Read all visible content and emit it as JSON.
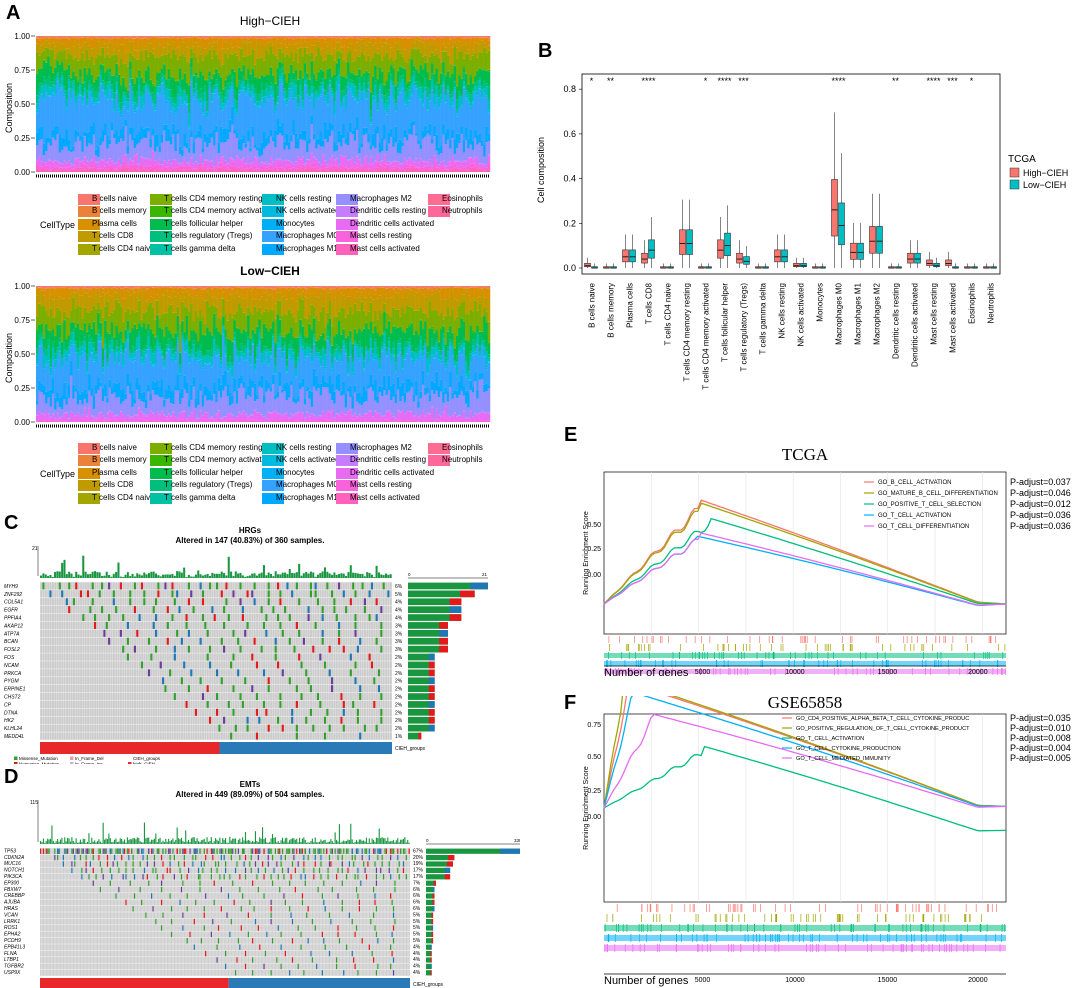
{
  "panels": {
    "A": "A",
    "B": "B",
    "C": "C",
    "D": "D",
    "E": "E",
    "F": "F"
  },
  "colors": {
    "B cells naive": "#f8766d",
    "B cells memory": "#ec8239",
    "Plasma cells": "#d89000",
    "T cells CD8": "#c09b00",
    "T cells CD4 naive": "#a3a500",
    "T cells CD4 memory resting": "#7cae00",
    "T cells CD4 memory activated": "#39b600",
    "T cells follicular helper": "#00bb4e",
    "T cells regulatory (Tregs)": "#00bf7d",
    "T cells gamma delta": "#00c1a3",
    "NK cells resting": "#00bfc4",
    "NK cells activated": "#00bae0",
    "Monocytes": "#00b0f6",
    "Macrophages M0": "#35a2ff",
    "Macrophages M1": "#00a9ff",
    "Macrophages M2": "#9590ff",
    "Dendritic cells resting": "#c77cff",
    "Dendritic cells activated": "#e76bf3",
    "Mast cells resting": "#fa62db",
    "Mast cells activated": "#ff62bc",
    "Eosinophils": "#ff6c91",
    "Neutrophils": "#ff6699"
  },
  "panelA": {
    "high_title": "High−CIEH",
    "low_title": "Low−CIEH",
    "ylabel": "Composition",
    "yticks": [
      "1.00",
      "0.75",
      "0.50",
      "0.25",
      "0.00"
    ],
    "legend_title": "CellType",
    "legend_cols": [
      [
        "B cells naive",
        "B cells memory",
        "Plasma cells",
        "T cells CD8",
        "T cells CD4 naive"
      ],
      [
        "T cells CD4 memory resting",
        "T cells CD4 memory activated",
        "T cells follicular helper",
        "T cells regulatory (Tregs)",
        "T cells gamma delta"
      ],
      [
        "NK cells resting",
        "NK cells activated",
        "Monocytes",
        "Macrophages M0",
        "Macrophages M1"
      ],
      [
        "Macrophages M2",
        "Dendritic cells resting",
        "Dendritic cells activated",
        "Mast cells resting",
        "Mast cells activated"
      ],
      [
        "Eosinophils",
        "Neutrophils"
      ]
    ]
  },
  "chart_data": [
    {
      "type": "box",
      "title": "",
      "ylabel": "Cell composition",
      "ylim": [
        0,
        0.85
      ],
      "yticks": [
        "0.0",
        "0.2",
        "0.4",
        "0.6",
        "0.8"
      ],
      "legend_title": "TCGA",
      "series": [
        {
          "name": "High−CIEH",
          "color": "#f8766d"
        },
        {
          "name": "Low−CIEH",
          "color": "#00bfc4"
        }
      ],
      "categories": [
        "B cells naive",
        "B cells memory",
        "Plasma cells",
        "T cells CD8",
        "T cells CD4 naive",
        "T cells CD4 memory resting",
        "T cells CD4 memory activated",
        "T cells follicular helper",
        "T cells regulatory (Tregs)",
        "T cells gamma delta",
        "NK cells resting",
        "NK cells activated",
        "Monocytes",
        "Macrophages M0",
        "Macrophages M1",
        "Macrophages M2",
        "Dendritic cells resting",
        "Dendritic cells activated",
        "Mast cells resting",
        "Mast cells activated",
        "Eosinophils",
        "Neutrophils"
      ],
      "significance": [
        "*",
        "**",
        "",
        "****",
        "",
        "",
        "*",
        "****",
        "***",
        "",
        "",
        "",
        "",
        "****",
        "",
        "",
        "**",
        "",
        "****",
        "***",
        "*",
        ""
      ],
      "high_median": [
        0.01,
        0.0,
        0.05,
        0.04,
        0.0,
        0.11,
        0.0,
        0.08,
        0.04,
        0.0,
        0.05,
        0.01,
        0.0,
        0.26,
        0.07,
        0.12,
        0.0,
        0.04,
        0.02,
        0.02,
        0.0,
        0.0
      ],
      "low_median": [
        0.0,
        0.0,
        0.05,
        0.08,
        0.0,
        0.11,
        0.0,
        0.1,
        0.03,
        0.0,
        0.05,
        0.01,
        0.0,
        0.19,
        0.07,
        0.12,
        0.0,
        0.04,
        0.01,
        0.0,
        0.0,
        0.0
      ]
    },
    {
      "type": "line",
      "title": "TCGA",
      "xlabel": "Number of genes",
      "ylabel": "Running Enrichment Score",
      "xticks": [
        "5000",
        "10000",
        "15000",
        "20000"
      ],
      "yticks": [
        "0.50",
        "0.25",
        "0.00"
      ],
      "series": [
        {
          "name": "GO_B_CELL_ACTIVATION",
          "color": "#f8766d",
          "padj": "P-adjust=0.037"
        },
        {
          "name": "GO_MATURE_B_CELL_DIFFERENTIATION",
          "color": "#a3a500",
          "padj": "P-adjust=0.046"
        },
        {
          "name": "GO_POSITIVE_T_CELL_SELECTION",
          "color": "#00bf7d",
          "padj": "P-adjust=0.012"
        },
        {
          "name": "GO_T_CELL_ACTIVATION",
          "color": "#00b0f6",
          "padj": "P-adjust=0.036"
        },
        {
          "name": "GO_T_CELL_DIFFERENTIATION",
          "color": "#e76bf3",
          "padj": "P-adjust=0.036"
        }
      ]
    },
    {
      "type": "line",
      "title": "GSE65858",
      "xlabel": "Number of genes",
      "ylabel": "Running Enrichment Score",
      "xticks": [
        "5000",
        "10000",
        "15000",
        "20000"
      ],
      "yticks": [
        "0.75",
        "0.50",
        "0.25",
        "0.00"
      ],
      "series": [
        {
          "name": "GO_CD4_POSITIVE_ALPHA_BETA_T_CELL_CYTOKINE_PRODUC",
          "color": "#f8766d",
          "padj": "P-adjust=0.035"
        },
        {
          "name": "GO_POSITIVE_REGULATION_OF_T_CELL_CYTOKINE_PRODUCT",
          "color": "#a3a500",
          "padj": "P-adjust=0.010"
        },
        {
          "name": "GO_T_CELL_ACTIVATION",
          "color": "#00bf7d",
          "padj": "P-adjust=0.008"
        },
        {
          "name": "GO_T_CELL_CYTOKINE_PRODUCTION",
          "color": "#00b0f6",
          "padj": "P-adjust=0.004"
        },
        {
          "name": "GO_T_CELL_MEDIATED_IMMUNITY",
          "color": "#e76bf3",
          "padj": "P-adjust=0.005"
        }
      ]
    }
  ],
  "panelC": {
    "title": "HRGs",
    "subtitle": "Altered in 147 (40.83%) of 360 samples.",
    "genes": [
      "MYH9",
      "ZNF292",
      "COL5A1",
      "EGFR",
      "PPFIA4",
      "AKAP12",
      "ATP7A",
      "BCAN",
      "FOSL2",
      "FOS",
      "NCAM",
      "PRKCA",
      "PYGM",
      "ERPINE1",
      "CHST2",
      "CP",
      "DTNA",
      "HK2",
      "KLHL24",
      "MEDD4L"
    ],
    "pcts": [
      "6%",
      "5%",
      "4%",
      "4%",
      "4%",
      "3%",
      "3%",
      "3%",
      "3%",
      "2%",
      "2%",
      "2%",
      "2%",
      "2%",
      "2%",
      "2%",
      "2%",
      "2%",
      "2%",
      "1%"
    ],
    "top_max": "21",
    "side_min": "0",
    "side_max": "21",
    "groups_label": "CIEH_groups",
    "legend": [
      "Missense_Mutation",
      "Nonsense_Mutation",
      "Frame_Shift_Del",
      "Frame_Shift_Ins",
      "Splice_Site",
      "Translation_Start_Site",
      "In_Frame_Del",
      "In_Frame_Ins",
      "Multi_Hit",
      "CIEH_groups",
      "high−CIEH",
      "low−CIEH",
      "NA"
    ]
  },
  "panelD": {
    "title": "EMTs",
    "subtitle": "Altered in 449 (89.09%) of 504 samples.",
    "genes": [
      "TP53",
      "CDKN2A",
      "MUC16",
      "NOTCH1",
      "PIK3CA",
      "EP300",
      "FBXW7",
      "CREBBP",
      "AJUBA",
      "HRAS",
      "VCAN",
      "LRRK1",
      "ROS1",
      "EPHA2",
      "PCDH9",
      "EPB41L3",
      "FLNA",
      "LTBP1",
      "TGFBR2",
      "USP9X"
    ],
    "pcts": [
      "67%",
      "20%",
      "19%",
      "17%",
      "17%",
      "7%",
      "6%",
      "6%",
      "6%",
      "6%",
      "5%",
      "5%",
      "5%",
      "5%",
      "5%",
      "4%",
      "4%",
      "4%",
      "4%",
      "4%"
    ],
    "top_max": "115",
    "side_min": "0",
    "side_max": "338",
    "groups_label": "CIEH_groups",
    "legend": [
      "Missense_Mutation",
      "Nonsense_Mutation",
      "Frame_Shift_Del",
      "Frame_Shift_Ins",
      "Splice_Site",
      "In_Frame_Del",
      "In_Frame_Ins",
      "Translation_Start_Site",
      "Multi_Hit",
      "CIEH_groups",
      "high−CIEH",
      "low−CIEH",
      "NA"
    ]
  }
}
